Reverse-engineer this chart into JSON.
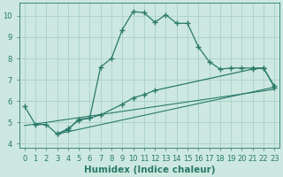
{
  "xlabel": "Humidex (Indice chaleur)",
  "bg_color": "#cce8e0",
  "grid_color": "#aed4cc",
  "line_color": "#2a7a6a",
  "xlim": [
    -0.5,
    23.5
  ],
  "ylim": [
    3.8,
    10.6
  ],
  "xticks": [
    0,
    1,
    2,
    3,
    4,
    5,
    6,
    7,
    8,
    9,
    10,
    11,
    12,
    13,
    14,
    15,
    16,
    17,
    18,
    19,
    20,
    21,
    22,
    23
  ],
  "yticks": [
    4,
    5,
    6,
    7,
    8,
    9,
    10
  ],
  "curve1_x": [
    0,
    1,
    2,
    3,
    4,
    5,
    6,
    7,
    8,
    9,
    10,
    11,
    12,
    13,
    14,
    15,
    16,
    17,
    18,
    19,
    20,
    21,
    22,
    23
  ],
  "curve1_y": [
    5.75,
    4.9,
    4.9,
    4.45,
    4.7,
    5.1,
    5.2,
    7.6,
    8.0,
    9.35,
    10.2,
    10.15,
    9.7,
    10.05,
    9.65,
    9.65,
    8.55,
    7.85,
    7.5,
    7.55,
    7.55,
    7.55,
    7.55,
    6.7
  ],
  "curve2_x": [
    3,
    4,
    5,
    6,
    7,
    9,
    10,
    11,
    12,
    21,
    22,
    23
  ],
  "curve2_y": [
    4.45,
    4.65,
    5.15,
    5.2,
    5.35,
    5.85,
    6.15,
    6.3,
    6.5,
    7.5,
    7.55,
    6.65
  ],
  "line1_x": [
    0,
    23
  ],
  "line1_y": [
    4.85,
    6.55
  ],
  "line2_x": [
    3,
    23
  ],
  "line2_y": [
    4.45,
    6.65
  ],
  "tick_fontsize": 6,
  "label_fontsize": 7.5,
  "marker": "+",
  "marker_size": 4
}
